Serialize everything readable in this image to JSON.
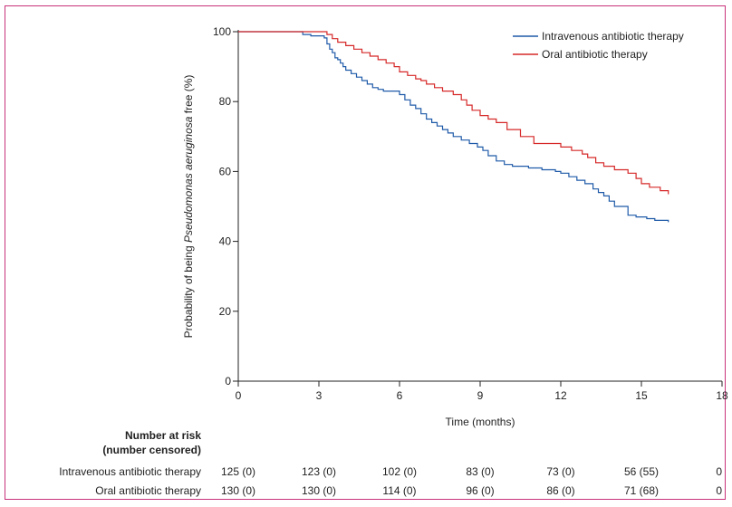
{
  "chart_data": {
    "type": "line",
    "xlabel": "Time (months)",
    "ylabel_parts": [
      "Probability of being ",
      "Pseudomonas aeruginosa",
      " free (%)"
    ],
    "xlim": [
      0,
      18
    ],
    "ylim": [
      0,
      100
    ],
    "xticks": [
      "0",
      "3",
      "6",
      "9",
      "12",
      "15",
      "18"
    ],
    "yticks": [
      "0",
      "20",
      "40",
      "60",
      "80",
      "100"
    ],
    "legend_position": "top-right",
    "series": [
      {
        "name": "Intravenous antibiotic therapy",
        "color": "#1f5aa8",
        "x": [
          0,
          2.0,
          2.4,
          2.7,
          3.2,
          3.3,
          3.4,
          3.5,
          3.6,
          3.7,
          3.8,
          3.9,
          4.0,
          4.2,
          4.4,
          4.6,
          4.8,
          5.0,
          5.2,
          5.4,
          6.0,
          6.2,
          6.4,
          6.6,
          6.8,
          7.0,
          7.2,
          7.4,
          7.6,
          7.8,
          8.0,
          8.3,
          8.6,
          8.9,
          9.1,
          9.3,
          9.6,
          9.9,
          10.2,
          10.8,
          11.3,
          11.8,
          12.0,
          12.3,
          12.6,
          12.9,
          13.2,
          13.4,
          13.6,
          13.8,
          14.0,
          14.5,
          14.8,
          15.2,
          15.5,
          16.0
        ],
        "y": [
          100,
          100,
          99.2,
          98.8,
          98.2,
          96.5,
          95.0,
          94.0,
          92.5,
          92.0,
          91.0,
          90.0,
          89.0,
          88.0,
          87.0,
          86.0,
          85.0,
          84.0,
          83.5,
          83.0,
          82.0,
          80.5,
          79.0,
          78.0,
          76.5,
          75.0,
          74.0,
          73.0,
          72.0,
          71.0,
          70.0,
          69.0,
          68.0,
          67.0,
          66.0,
          64.5,
          63.0,
          62.0,
          61.5,
          61.0,
          60.5,
          60.0,
          59.5,
          58.5,
          57.5,
          56.5,
          55.0,
          54.0,
          53.0,
          51.5,
          50.0,
          47.5,
          47.0,
          46.5,
          46.0,
          45.5
        ]
      },
      {
        "name": "Oral antibiotic therapy",
        "color": "#d62828",
        "x": [
          0,
          3.3,
          3.5,
          3.7,
          4.0,
          4.3,
          4.6,
          4.9,
          5.2,
          5.5,
          5.8,
          6.0,
          6.3,
          6.6,
          6.8,
          7.0,
          7.3,
          7.6,
          8.0,
          8.3,
          8.5,
          8.7,
          9.0,
          9.3,
          9.6,
          10.0,
          10.5,
          11.0,
          12.0,
          12.4,
          12.8,
          13.0,
          13.3,
          13.6,
          14.0,
          14.5,
          14.8,
          15.0,
          15.3,
          15.7,
          16.0
        ],
        "y": [
          100,
          99.2,
          98.0,
          97.0,
          96.0,
          95.0,
          94.0,
          93.0,
          92.0,
          91.0,
          90.0,
          88.5,
          87.5,
          86.5,
          86.0,
          85.0,
          84.0,
          83.0,
          82.0,
          80.5,
          79.0,
          77.5,
          76.0,
          75.0,
          74.0,
          72.0,
          70.0,
          68.0,
          67.0,
          66.0,
          65.0,
          64.0,
          62.5,
          61.5,
          60.5,
          59.5,
          58.0,
          56.5,
          55.5,
          54.5,
          53.5
        ]
      }
    ]
  },
  "risk_table": {
    "title_line1": "Number at risk",
    "title_line2": "(number censored)",
    "rows": [
      {
        "label": "Intravenous antibiotic therapy",
        "values": [
          "125 (0)",
          "123 (0)",
          "102 (0)",
          "83 (0)",
          "73 (0)",
          "56 (55)",
          "0"
        ]
      },
      {
        "label": "Oral antibiotic therapy",
        "values": [
          "130 (0)",
          "130 (0)",
          "114 (0)",
          "96 (0)",
          "86 (0)",
          "71 (68)",
          "0"
        ]
      }
    ]
  }
}
